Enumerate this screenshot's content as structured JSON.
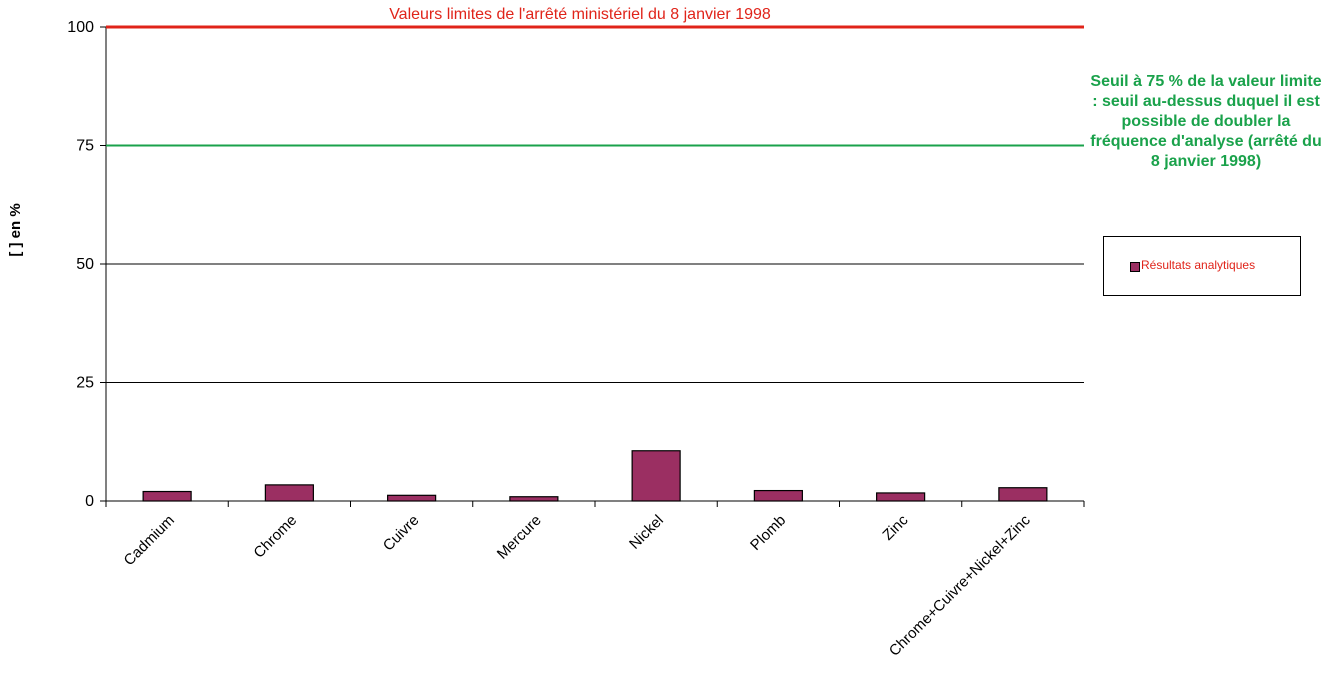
{
  "chart_data": {
    "type": "bar",
    "title": "Valeurs limites de l'arrêté ministériel du 8 janvier 1998",
    "ylabel": "[ ] en %",
    "xlabel": "",
    "ylim": [
      0,
      100
    ],
    "yticks": [
      0,
      25,
      50,
      75,
      100
    ],
    "grid": true,
    "categories": [
      "Cadmium",
      "Chrome",
      "Cuivre",
      "Mercure",
      "Nickel",
      "Plomb",
      "Zinc",
      "Chrome+Cuivre+Nickel+Zinc"
    ],
    "series": [
      {
        "name": "Résultats analytiques",
        "values": [
          2.0,
          3.4,
          1.2,
          0.9,
          10.6,
          2.2,
          1.7,
          2.8
        ],
        "color": "#9b2f62"
      }
    ],
    "reference_lines": [
      {
        "value": 100,
        "color": "#e0241a"
      },
      {
        "value": 75,
        "color": "#1aa24b"
      }
    ],
    "annotations": [
      {
        "text": "Seuil à 75 % de la valeur limite : seuil au-dessus duquel il est possible de doubler la fréquence d'analyse (arrêté du 8 janvier 1998)",
        "color": "#1aa24b"
      }
    ],
    "legend": {
      "placement": "right",
      "label": "Résultats analytiques"
    }
  }
}
